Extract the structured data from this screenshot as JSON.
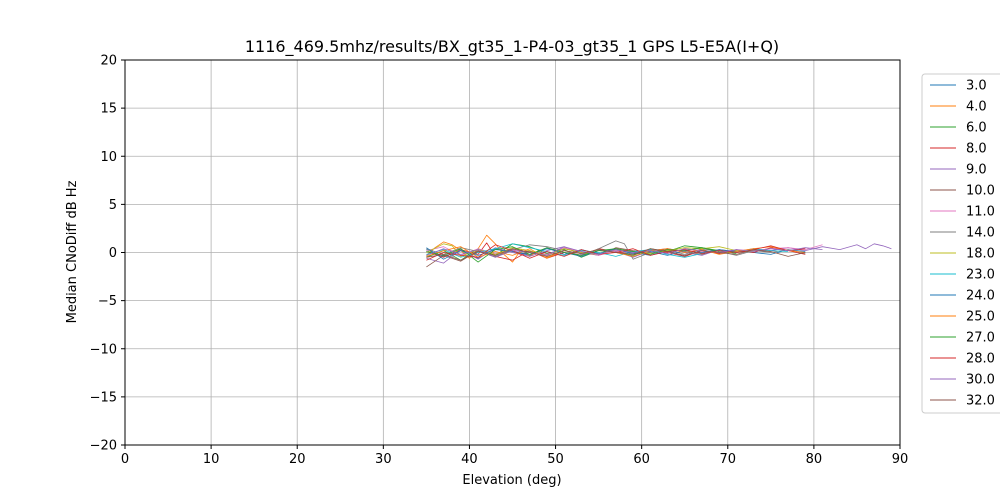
{
  "chart_data": {
    "type": "line",
    "title": "1116_469.5mhz/results/BX_gt35_1-P4-03_gt35_1 GPS L5-E5A(I+Q)",
    "xlabel": "Elevation (deg)",
    "ylabel": "Median CNoDiff dB Hz",
    "xlim": [
      0,
      90
    ],
    "ylim": [
      -20,
      20
    ],
    "xticks": [
      0,
      10,
      20,
      30,
      40,
      50,
      60,
      70,
      80,
      90
    ],
    "yticks": [
      -20,
      -15,
      -10,
      -5,
      0,
      5,
      10,
      15,
      20
    ],
    "grid": true,
    "legend_position": "right",
    "series": [
      {
        "name": "3.0",
        "color": "#1f77b4",
        "x": [
          35,
          37,
          39,
          41,
          43,
          45,
          47,
          49,
          51,
          53,
          55,
          57,
          59,
          61,
          63,
          65,
          67,
          69,
          71,
          73,
          75,
          77,
          79
        ],
        "values": [
          0.3,
          -0.4,
          0.2,
          -0.6,
          0.4,
          0.1,
          -0.3,
          0.5,
          -0.2,
          0.3,
          -0.1,
          0.4,
          0.0,
          -0.3,
          0.2,
          -0.4,
          0.3,
          -0.1,
          0.2,
          0.0,
          -0.2,
          0.3,
          0.1
        ]
      },
      {
        "name": "4.0",
        "color": "#ff7f0e",
        "x": [
          35,
          36,
          37,
          38,
          39,
          40,
          41,
          42,
          43,
          44,
          45,
          46,
          47,
          48,
          49,
          50
        ],
        "values": [
          -0.3,
          0.5,
          1.1,
          0.8,
          0.2,
          -0.6,
          0.4,
          1.8,
          0.9,
          -0.2,
          -1.0,
          0.3,
          -0.4,
          0.2,
          -0.5,
          -0.2
        ]
      },
      {
        "name": "6.0",
        "color": "#2ca02c",
        "x": [
          35,
          37,
          39,
          41,
          43,
          45,
          47,
          49,
          51,
          53,
          55,
          57,
          59,
          61,
          63,
          65,
          67,
          69,
          71
        ],
        "values": [
          -0.5,
          0.2,
          -0.8,
          0.4,
          -0.3,
          0.9,
          0.6,
          -0.1,
          0.3,
          -0.5,
          0.2,
          0.0,
          -0.3,
          0.4,
          0.1,
          0.7,
          0.5,
          0.2,
          -0.1
        ]
      },
      {
        "name": "8.0",
        "color": "#d62728",
        "x": [
          35,
          37,
          39,
          41,
          42,
          43,
          45,
          47,
          49,
          51,
          53,
          55,
          57,
          59,
          61,
          63,
          65,
          67,
          69,
          71,
          73,
          75,
          77,
          79
        ],
        "values": [
          0.1,
          -0.5,
          0.3,
          -0.2,
          1.0,
          -0.4,
          -0.8,
          0.2,
          -0.6,
          0.0,
          -0.3,
          0.4,
          0.1,
          -0.2,
          0.3,
          0.0,
          -0.4,
          0.2,
          -0.1,
          0.3,
          0.0,
          0.5,
          0.2,
          -0.2
        ]
      },
      {
        "name": "9.0",
        "color": "#9467bd",
        "x": [
          35,
          37,
          39,
          41,
          43,
          45,
          47,
          49,
          51,
          53,
          55,
          57,
          59,
          61,
          63,
          65,
          67,
          69,
          71,
          73,
          75,
          77,
          79,
          81,
          83,
          85,
          86,
          87,
          88,
          89
        ],
        "values": [
          -0.6,
          -1.1,
          0.3,
          -0.7,
          0.5,
          0.0,
          -0.4,
          0.2,
          0.6,
          -0.2,
          0.3,
          0.1,
          -0.5,
          0.2,
          0.4,
          0.0,
          -0.3,
          0.3,
          0.1,
          0.4,
          0.2,
          0.5,
          0.2,
          0.6,
          0.3,
          0.8,
          0.4,
          0.9,
          0.7,
          0.4
        ]
      },
      {
        "name": "10.0",
        "color": "#8c564b",
        "x": [
          35,
          37,
          39,
          41,
          43,
          45,
          47,
          49,
          51,
          53,
          55,
          57,
          59,
          61,
          63,
          65,
          67,
          69,
          71,
          73,
          75
        ],
        "values": [
          -1.5,
          -0.3,
          -0.9,
          0.2,
          -0.5,
          0.3,
          0.1,
          -0.2,
          0.4,
          0.0,
          -0.3,
          0.5,
          0.2,
          0.0,
          0.4,
          0.1,
          -0.2,
          0.3,
          0.0,
          0.2,
          0.1
        ]
      },
      {
        "name": "11.0",
        "color": "#e377c2",
        "x": [
          35,
          37,
          39,
          41,
          43,
          45,
          47,
          49,
          51,
          53,
          55,
          57,
          59,
          61,
          63,
          65,
          67,
          69,
          71,
          73,
          75,
          77,
          79,
          81
        ],
        "values": [
          0.2,
          0.6,
          -0.3,
          0.4,
          -0.1,
          0.3,
          0.0,
          -0.2,
          0.5,
          0.1,
          -0.3,
          0.2,
          0.0,
          0.3,
          -0.1,
          0.4,
          0.1,
          0.0,
          0.3,
          0.2,
          0.4,
          0.5,
          0.3,
          0.8
        ]
      },
      {
        "name": "14.0",
        "color": "#7f7f7f",
        "x": [
          35,
          37,
          39,
          41,
          43,
          45,
          47,
          49,
          51,
          53,
          55,
          57,
          58,
          59,
          61,
          63,
          65,
          67,
          69,
          71,
          73,
          75,
          77,
          79
        ],
        "values": [
          0.4,
          -0.2,
          0.5,
          0.1,
          -0.4,
          0.3,
          0.8,
          0.6,
          0.2,
          -0.3,
          0.4,
          1.2,
          0.9,
          -0.7,
          0.0,
          0.3,
          -0.2,
          0.4,
          0.1,
          -0.3,
          0.2,
          0.0,
          0.3,
          -0.1
        ]
      },
      {
        "name": "18.0",
        "color": "#bcbd22",
        "x": [
          35,
          37,
          38,
          39,
          41,
          43,
          45,
          47,
          49,
          51,
          53,
          55,
          57,
          59,
          61,
          63,
          65,
          67,
          69,
          71,
          73
        ],
        "values": [
          0.0,
          0.9,
          0.7,
          -0.4,
          0.3,
          -0.2,
          0.5,
          0.2,
          -0.3,
          0.4,
          0.0,
          -0.2,
          0.3,
          0.1,
          -0.1,
          0.2,
          0.5,
          0.4,
          0.6,
          0.2,
          0.1
        ]
      },
      {
        "name": "23.0",
        "color": "#17becf",
        "x": [
          35,
          37,
          39,
          41,
          43,
          45,
          47,
          49,
          51,
          53,
          55,
          57,
          59,
          61,
          63,
          65,
          67,
          69,
          71,
          73,
          75,
          77
        ],
        "values": [
          -0.2,
          0.3,
          -0.5,
          0.0,
          0.4,
          0.9,
          0.5,
          0.1,
          -0.3,
          0.2,
          0.0,
          -0.4,
          0.1,
          0.3,
          -0.2,
          -0.5,
          -0.1,
          0.2,
          0.0,
          0.4,
          0.2,
          0.1
        ]
      },
      {
        "name": "24.0",
        "color": "#1f77b4",
        "x": [
          35,
          37,
          39,
          41,
          43,
          45,
          47,
          49,
          51,
          53,
          55,
          57,
          59,
          61,
          63,
          65,
          67,
          69,
          71
        ],
        "values": [
          0.5,
          -0.7,
          0.2,
          -0.3,
          0.3,
          0.1,
          -0.2,
          0.4,
          0.0,
          -0.4,
          0.2,
          0.3,
          -0.1,
          0.1,
          -0.3,
          0.2,
          0.0,
          0.3,
          0.1
        ]
      },
      {
        "name": "25.0",
        "color": "#ff7f0e",
        "x": [
          35,
          37,
          39,
          41,
          43,
          45,
          47,
          49,
          51,
          53,
          55,
          57,
          59,
          61,
          63,
          65,
          67,
          69,
          71,
          73,
          75,
          77,
          79
        ],
        "values": [
          -0.4,
          0.2,
          0.6,
          -0.5,
          0.1,
          -0.3,
          0.4,
          -0.6,
          0.2,
          -0.1,
          0.3,
          0.0,
          -0.4,
          0.2,
          0.4,
          0.0,
          0.3,
          -0.2,
          0.1,
          0.4,
          0.6,
          0.2,
          0.0
        ]
      },
      {
        "name": "27.0",
        "color": "#2ca02c",
        "x": [
          35,
          37,
          39,
          41,
          43,
          45,
          47,
          49,
          51,
          53,
          55,
          57,
          59,
          61,
          63,
          65,
          67,
          69
        ],
        "values": [
          0.1,
          -0.3,
          0.4,
          -1.0,
          0.3,
          0.6,
          -0.2,
          0.5,
          0.0,
          -0.3,
          0.2,
          0.4,
          0.1,
          -0.2,
          0.3,
          0.2,
          0.5,
          0.1
        ]
      },
      {
        "name": "28.0",
        "color": "#d62728",
        "x": [
          35,
          37,
          39,
          41,
          43,
          45,
          47,
          49,
          51,
          53,
          55,
          57,
          59,
          61,
          63,
          65,
          67,
          69,
          71,
          73,
          75,
          77,
          79
        ],
        "values": [
          -0.8,
          0.0,
          -0.3,
          -0.5,
          0.8,
          0.2,
          -0.6,
          0.1,
          -0.4,
          0.3,
          -0.2,
          0.0,
          0.4,
          -0.3,
          0.1,
          0.3,
          -0.1,
          0.2,
          0.0,
          0.3,
          0.7,
          0.2,
          0.4
        ]
      },
      {
        "name": "30.0",
        "color": "#9467bd",
        "x": [
          35,
          37,
          39,
          41,
          43,
          45,
          47,
          49,
          51,
          53,
          55,
          57,
          59,
          61,
          63,
          65,
          67,
          69,
          71,
          73,
          75,
          77,
          79,
          81
        ],
        "values": [
          -0.3,
          0.4,
          -0.2,
          0.3,
          -0.5,
          0.2,
          0.0,
          -0.3,
          0.6,
          0.1,
          -0.2,
          0.3,
          0.0,
          0.2,
          -0.1,
          0.4,
          0.2,
          0.0,
          0.3,
          0.1,
          0.4,
          0.2,
          0.5,
          0.3
        ]
      },
      {
        "name": "32.0",
        "color": "#8c564b",
        "x": [
          35,
          37,
          39,
          41,
          43,
          45,
          47,
          49,
          51,
          53,
          55,
          57,
          59,
          61,
          63,
          65,
          67,
          69,
          71,
          73,
          75,
          77,
          79
        ],
        "values": [
          -0.5,
          -0.2,
          -0.8,
          0.1,
          -0.3,
          0.4,
          0.0,
          -0.4,
          0.2,
          -0.1,
          0.3,
          0.0,
          -0.2,
          0.4,
          0.1,
          -0.3,
          0.2,
          0.0,
          -0.2,
          0.3,
          0.1,
          -0.4,
          0.0
        ]
      }
    ]
  }
}
